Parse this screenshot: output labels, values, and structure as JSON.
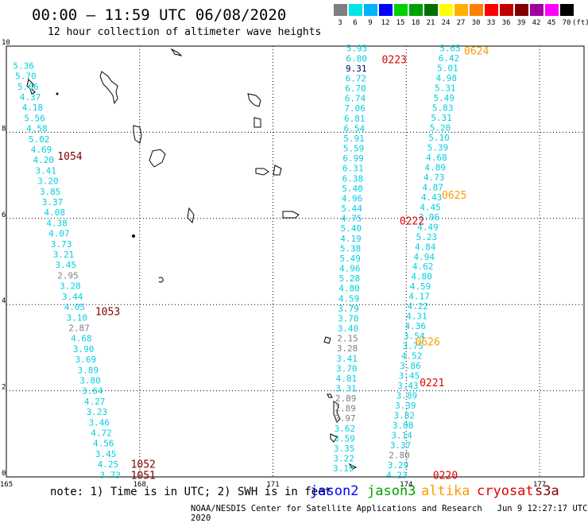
{
  "header": {
    "title": "00:00 – 11:59 UTC 06/08/2020",
    "subtitle": "12 hour collection of altimeter wave heights"
  },
  "color_scale": {
    "unit_label": "(ft)",
    "bins": [
      {
        "label": "3",
        "color": "#7f7f7f"
      },
      {
        "label": "6",
        "color": "#00e5e5"
      },
      {
        "label": "9",
        "color": "#00b2ff"
      },
      {
        "label": "12",
        "color": "#0000ff"
      },
      {
        "label": "15",
        "color": "#00d000"
      },
      {
        "label": "18",
        "color": "#00a000"
      },
      {
        "label": "21",
        "color": "#007000"
      },
      {
        "label": "24",
        "color": "#ffff00"
      },
      {
        "label": "27",
        "color": "#ffb000"
      },
      {
        "label": "30",
        "color": "#ff8000"
      },
      {
        "label": "33",
        "color": "#ff0000"
      },
      {
        "label": "36",
        "color": "#c00000"
      },
      {
        "label": "39",
        "color": "#800000"
      },
      {
        "label": "42",
        "color": "#a000a0"
      },
      {
        "label": "45",
        "color": "#ff00ff"
      },
      {
        "label": "70",
        "color": "#000000"
      }
    ]
  },
  "axes": {
    "x_ticks": [
      "165",
      "168",
      "171",
      "174",
      "177"
    ],
    "y_ticks": [
      "0",
      "2",
      "4",
      "6",
      "8",
      "10"
    ],
    "x_range": [
      165,
      178
    ],
    "y_range": [
      0,
      10
    ]
  },
  "tracks": {
    "track_a": {
      "values": [
        "5.36",
        "5.70",
        "5.06",
        "4.37",
        "4.18",
        "5.56",
        "4.58",
        "5.02",
        "4.69",
        "4.20",
        "3.41",
        "3.20",
        "3.85",
        "3.37",
        "4.08",
        "4.38",
        "4.07",
        "3.73",
        "3.21",
        "3.45",
        "2.95",
        "3.28",
        "3.44",
        "4.05",
        "3.10",
        "2.87",
        "4.68",
        "3.90",
        "3.69",
        "3.89",
        "3.80",
        "3.64",
        "4.27",
        "3.23",
        "3.46",
        "4.72",
        "4.56",
        "3.45",
        "4.25",
        "3.73"
      ],
      "colors": [
        "c",
        "c",
        "c",
        "c",
        "c",
        "c",
        "c",
        "c",
        "c",
        "c",
        "c",
        "c",
        "c",
        "c",
        "c",
        "c",
        "c",
        "c",
        "c",
        "c",
        "g",
        "c",
        "c",
        "c",
        "c",
        "g",
        "c",
        "c",
        "c",
        "c",
        "c",
        "c",
        "c",
        "c",
        "c",
        "c",
        "c",
        "c",
        "c",
        "c"
      ],
      "times": [
        {
          "label": "1054",
          "color": "#800000",
          "lat": 7.45,
          "lon": 166.15
        },
        {
          "label": "1053",
          "color": "#800000",
          "lat": 3.85,
          "lon": 167.0
        },
        {
          "label": "1052",
          "color": "#800000",
          "lat": 0.3,
          "lon": 167.8
        },
        {
          "label": "1051",
          "color": "#800000",
          "lat": 0.05,
          "lon": 167.8
        }
      ]
    },
    "track_b": {
      "values": [
        "5.93",
        "6.80",
        "9.31",
        "6.72",
        "6.70",
        "6.74",
        "7.06",
        "6.81",
        "6.54",
        "5.91",
        "5.59",
        "6.99",
        "6.31",
        "6.38",
        "5.40",
        "4.96",
        "5.44",
        "4.75",
        "5.40",
        "4.19",
        "5.38",
        "5.49",
        "4.96",
        "5.28",
        "4.80",
        "4.59",
        "3.79",
        "3.70",
        "3.40",
        "2.15",
        "3.28",
        "3.41",
        "3.70",
        "4.81",
        "3.31",
        "2.89",
        "2.89",
        "2.97",
        "3.62",
        "3.59",
        "3.35",
        "3.22",
        "3.19"
      ],
      "colors": [
        "c",
        "c",
        "n",
        "c",
        "c",
        "c",
        "c",
        "c",
        "c",
        "c",
        "c",
        "c",
        "c",
        "c",
        "c",
        "c",
        "c",
        "c",
        "c",
        "c",
        "c",
        "c",
        "c",
        "c",
        "c",
        "c",
        "c",
        "c",
        "c",
        "g",
        "g",
        "c",
        "c",
        "c",
        "c",
        "g",
        "g",
        "g",
        "c",
        "c",
        "c",
        "c",
        "c"
      ],
      "times": [
        {
          "label": "0223",
          "color": "#e00000",
          "lat": 9.7,
          "lon": 173.45
        },
        {
          "label": "0222",
          "color": "#e00000",
          "lat": 5.95,
          "lon": 173.85
        },
        {
          "label": "0221",
          "color": "#e00000",
          "lat": 2.2,
          "lon": 174.3
        },
        {
          "label": "0220",
          "color": "#e00000",
          "lat": 0.05,
          "lon": 174.6
        }
      ]
    },
    "track_c": {
      "values": [
        "5.65",
        "6.42",
        "5.01",
        "4.98",
        "5.31",
        "5.49",
        "5.83",
        "5.31",
        "5.20",
        "5.10",
        "5.39",
        "4.68",
        "4.89",
        "4.73",
        "4.87",
        "4.43",
        "4.45",
        "3.96",
        "4.49",
        "5.23",
        "4.84",
        "4.94",
        "4.62",
        "4.80",
        "4.59",
        "4.17",
        "4.22",
        "4.31",
        "4.36",
        "3.54",
        "3.75",
        "4.52",
        "3.86",
        "3.45",
        "3.43",
        "3.89",
        "3.39",
        "3.82",
        "3.08",
        "3.14",
        "3.37",
        "2.80",
        "3.29",
        "4.23"
      ],
      "colors": [
        "c",
        "c",
        "c",
        "c",
        "c",
        "c",
        "c",
        "c",
        "c",
        "c",
        "c",
        "c",
        "c",
        "c",
        "c",
        "c",
        "c",
        "c",
        "c",
        "c",
        "c",
        "c",
        "c",
        "c",
        "c",
        "c",
        "c",
        "c",
        "c",
        "c",
        "c",
        "c",
        "c",
        "c",
        "c",
        "c",
        "c",
        "c",
        "c",
        "c",
        "c",
        "g",
        "c",
        "c"
      ],
      "times": [
        {
          "label": "0624",
          "color": "#ff9900",
          "lat": 9.9,
          "lon": 175.3
        },
        {
          "label": "0625",
          "color": "#ff9900",
          "lat": 6.55,
          "lon": 174.8
        },
        {
          "label": "0626",
          "color": "#ff9900",
          "lat": 3.15,
          "lon": 174.2
        }
      ]
    }
  },
  "footer": {
    "note": "note: 1) Time is in UTC; 2) SWH is in feet",
    "satellites": [
      {
        "name": "jason2",
        "color": "#0000ff"
      },
      {
        "name": "jason3",
        "color": "#00a000"
      },
      {
        "name": "altika",
        "color": "#ff9900"
      },
      {
        "name": "cryosat",
        "color": "#e00000"
      },
      {
        "name": "s3a",
        "color": "#800000"
      }
    ],
    "credit": "NOAA/NESDIS Center for Satellite Applications and Research",
    "timestamp": "Jun  9 12:27:17 UTC 2020"
  }
}
